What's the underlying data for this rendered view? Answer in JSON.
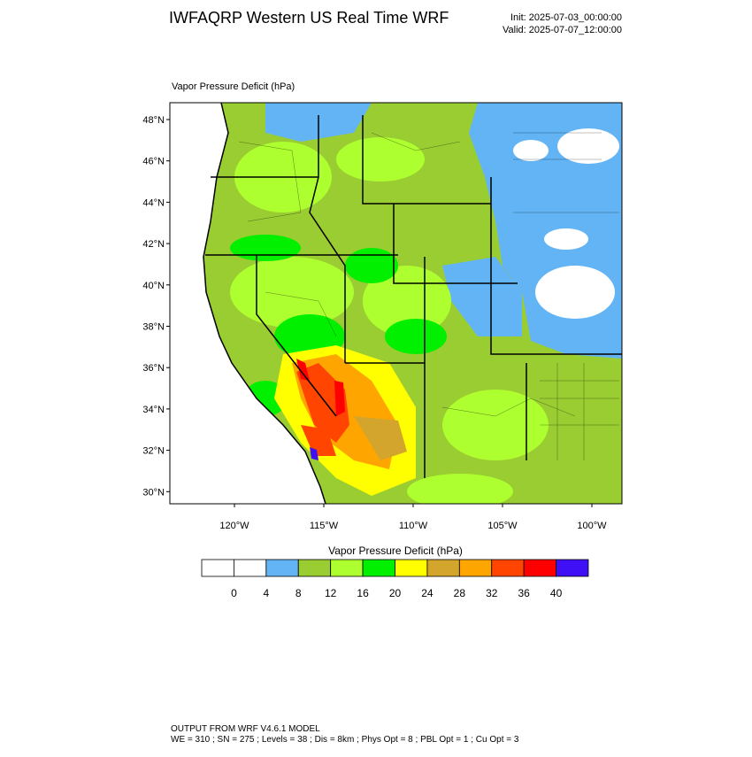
{
  "header": {
    "title": "IWFAQRP Western US Real Time WRF",
    "init": "Init: 2025-07-03_00:00:00",
    "valid": "Valid: 2025-07-07_12:00:00"
  },
  "map": {
    "label": "Vapor Pressure Deficit   (hPa)",
    "lat_labels": [
      "48°N",
      "46°N",
      "44°N",
      "42°N",
      "40°N",
      "38°N",
      "36°N",
      "34°N",
      "32°N",
      "30°N"
    ],
    "lon_labels": [
      "120°W",
      "115°W",
      "110°W",
      "105°W",
      "100°W"
    ]
  },
  "colorbar": {
    "title": "Vapor Pressure Deficit  (hPa)",
    "colors": [
      "#ffffff",
      "#ffffff",
      "#62b4f4",
      "#9acd32",
      "#adff2f",
      "#00f000",
      "#ffff00",
      "#d4a52c",
      "#ffa500",
      "#ff4500",
      "#ff0000",
      "#3f10f5"
    ],
    "ticks": [
      0,
      4,
      8,
      12,
      16,
      20,
      24,
      28,
      32,
      36,
      40
    ]
  },
  "footer": {
    "line1": "OUTPUT FROM WRF V4.6.1 MODEL",
    "line2": "WE = 310 ; SN = 275 ; Levels = 38 ; Dis = 8km ; Phys Opt = 8 ; PBL Opt = 1 ; Cu Opt = 3"
  }
}
